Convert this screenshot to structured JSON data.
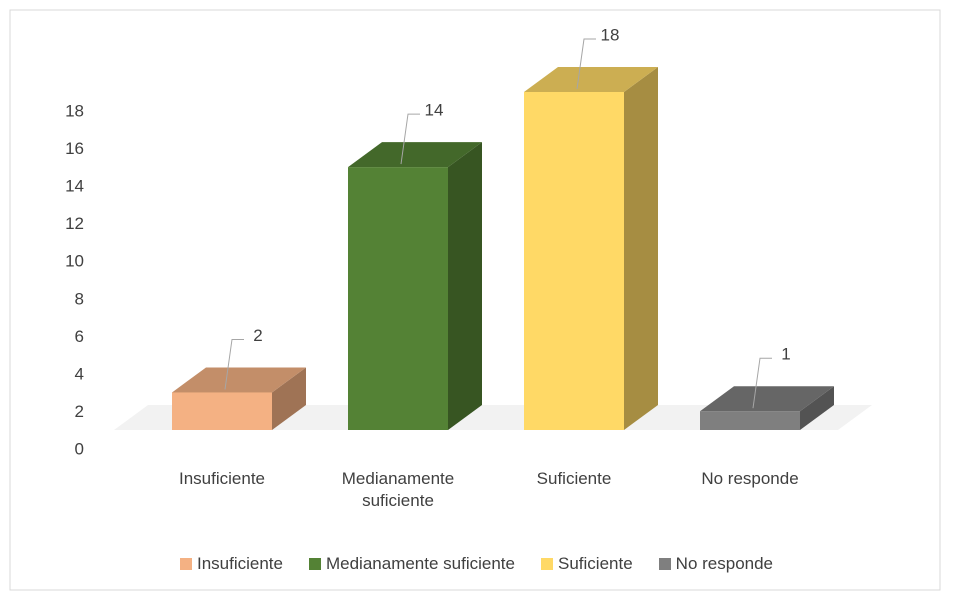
{
  "chart_data": {
    "type": "bar3d",
    "categories": [
      "Insuficiente",
      "Medianamente suficiente",
      "Suficiente",
      "No responde"
    ],
    "values": [
      2,
      14,
      18,
      1
    ],
    "colors": [
      "#f4b183",
      "#548235",
      "#ffd966",
      "#7f7f7f"
    ],
    "ylim": [
      0,
      18
    ],
    "yticks": [
      0,
      2,
      4,
      6,
      8,
      10,
      12,
      14,
      16,
      18
    ],
    "grid": false,
    "legend": "bottom"
  }
}
